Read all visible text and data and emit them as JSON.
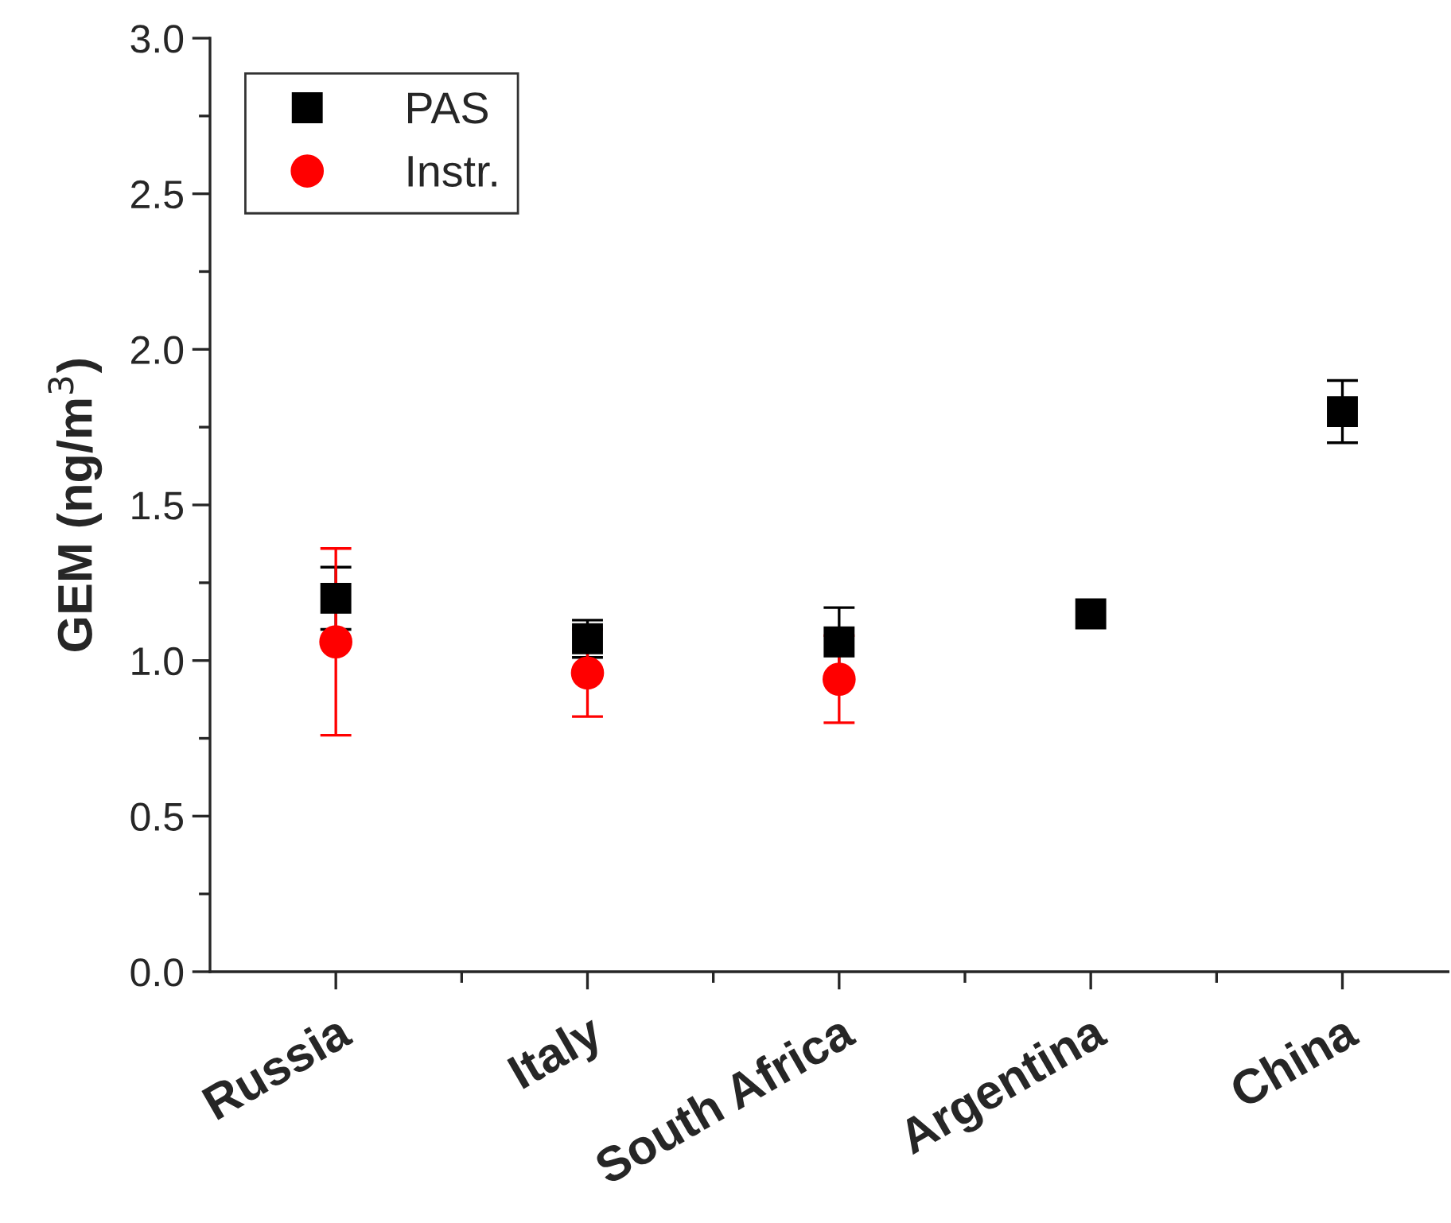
{
  "chart_data": {
    "type": "scatter",
    "ylabel": "GEM (ng/m$^{3}$)",
    "categories": [
      "Russia",
      "Italy",
      "South Africa",
      "Argentina",
      "China"
    ],
    "series": [
      {
        "name": "PAS",
        "color": "#000000",
        "marker": "square",
        "values": [
          1.2,
          1.07,
          1.06,
          1.15,
          1.8
        ],
        "errors": [
          0.1,
          0.06,
          0.11,
          null,
          0.1
        ]
      },
      {
        "name": "Instr.",
        "color": "#ff0000",
        "marker": "circle",
        "values": [
          1.06,
          0.96,
          0.94,
          null,
          null
        ],
        "errors": [
          0.3,
          0.14,
          0.14,
          null,
          null
        ]
      }
    ],
    "ylim": [
      0,
      3.0
    ],
    "yticks": [
      {
        "value": 0,
        "label": "0.0"
      },
      {
        "value": 0.5,
        "label": "0.5"
      },
      {
        "value": 1.0,
        "label": "1.0"
      },
      {
        "value": 1.5,
        "label": "1.5"
      },
      {
        "value": 2.0,
        "label": "2.0"
      },
      {
        "value": 2.5,
        "label": "2.5"
      },
      {
        "value": 3.0,
        "label": "3.0"
      }
    ],
    "grid": false,
    "legend": "top left"
  }
}
